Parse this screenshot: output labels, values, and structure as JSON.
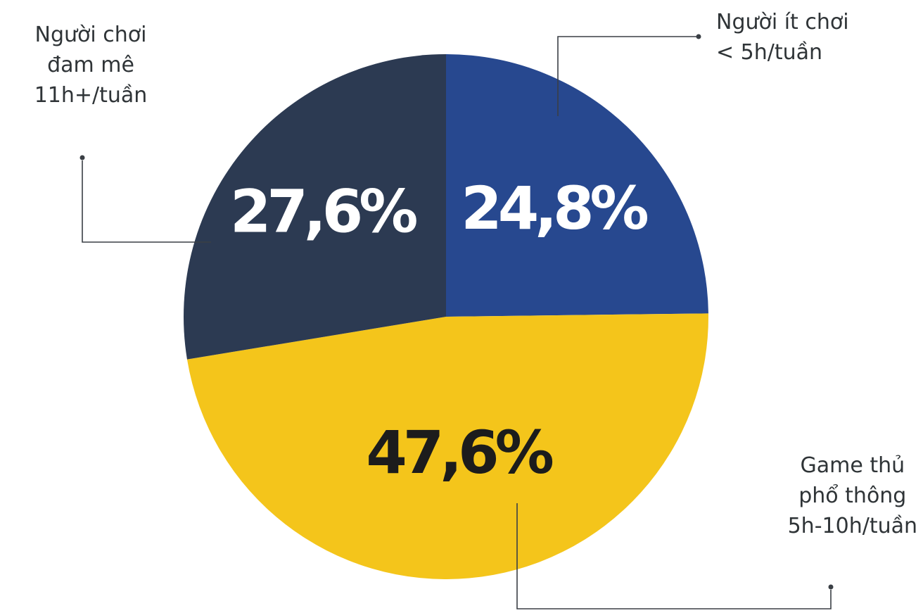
{
  "chart_data": {
    "type": "pie",
    "title": "",
    "start_angle_deg": 0,
    "direction": "clockwise",
    "slices": [
      {
        "value": 24.8,
        "value_label": "24,8%",
        "label_lines": [
          "Người ít chơi",
          "< 5h/tuần"
        ],
        "color": "#27488f",
        "text_color": "#ffffff"
      },
      {
        "value": 47.6,
        "value_label": "47,6%",
        "label_lines": [
          "Game thủ",
          "phổ thông",
          "5h-10h/tuần"
        ],
        "color": "#f4c51b",
        "text_color": "#1c1c1c"
      },
      {
        "value": 27.6,
        "value_label": "27,6%",
        "label_lines": [
          "Người chơi",
          "đam mê",
          "11h+/tuần"
        ],
        "color": "#2c3a52",
        "text_color": "#ffffff"
      }
    ]
  }
}
